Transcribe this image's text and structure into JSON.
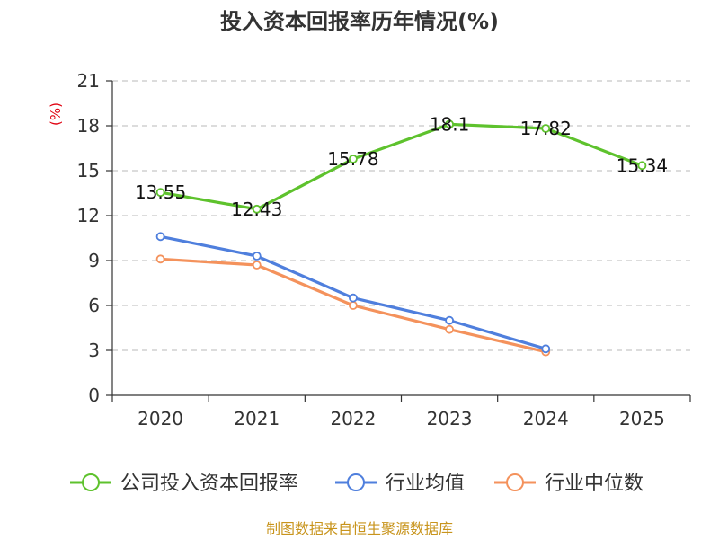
{
  "chart_data": {
    "type": "line",
    "title": "投入资本回报率历年情况(%)",
    "ylabel": "(%)",
    "xlabel": "",
    "categories": [
      "2020",
      "2021",
      "2022",
      "2023",
      "2024",
      "2025"
    ],
    "ylim": [
      0,
      21
    ],
    "yticks": [
      0,
      3,
      6,
      9,
      12,
      15,
      18,
      21
    ],
    "grid": true,
    "legend_position": "bottom",
    "series": [
      {
        "name": "公司投入资本回报率",
        "color": "#5ec22d",
        "values": [
          13.55,
          12.43,
          15.78,
          18.1,
          17.82,
          15.34
        ],
        "labels": [
          "13.55",
          "12.43",
          "15.78",
          "18.1",
          "17.82",
          "15.34"
        ],
        "show_labels": true
      },
      {
        "name": "行业均值",
        "color": "#4f7fdd",
        "values": [
          10.6,
          9.3,
          6.5,
          5.0,
          3.1,
          null
        ],
        "show_labels": false
      },
      {
        "name": "行业中位数",
        "color": "#f4925c",
        "values": [
          9.1,
          8.7,
          6.0,
          4.4,
          2.9,
          null
        ],
        "show_labels": false
      }
    ]
  },
  "source": "制图数据来自恒生聚源数据库"
}
